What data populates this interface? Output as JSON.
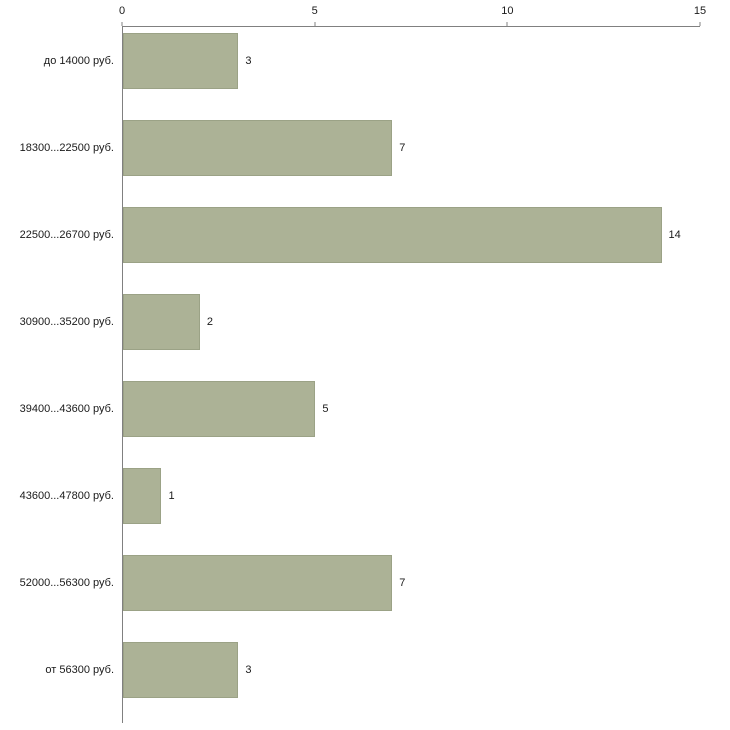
{
  "chart_data": {
    "type": "bar",
    "orientation": "horizontal",
    "title": "",
    "xlabel": "",
    "ylabel": "",
    "categories": [
      "до 14000 руб.",
      "18300...22500 руб.",
      "22500...26700 руб.",
      "30900...35200 руб.",
      "39400...43600 руб.",
      "43600...47800 руб.",
      "52000...56300 руб.",
      "от 56300 руб."
    ],
    "values": [
      3,
      7,
      14,
      2,
      5,
      1,
      7,
      3
    ],
    "value_labels": [
      "3",
      "7",
      "14",
      "2",
      "5",
      "1",
      "7",
      "3"
    ],
    "xlim": [
      0,
      15
    ],
    "x_ticks": [
      0,
      5,
      10,
      15
    ],
    "grid": false,
    "legend": false,
    "axis_position": "top",
    "colors": {
      "bar_fill": "#acb296",
      "bar_border": "#9ba286",
      "axis_line": "#808080",
      "text": "#1a1a1a",
      "background": "#ffffff"
    }
  }
}
